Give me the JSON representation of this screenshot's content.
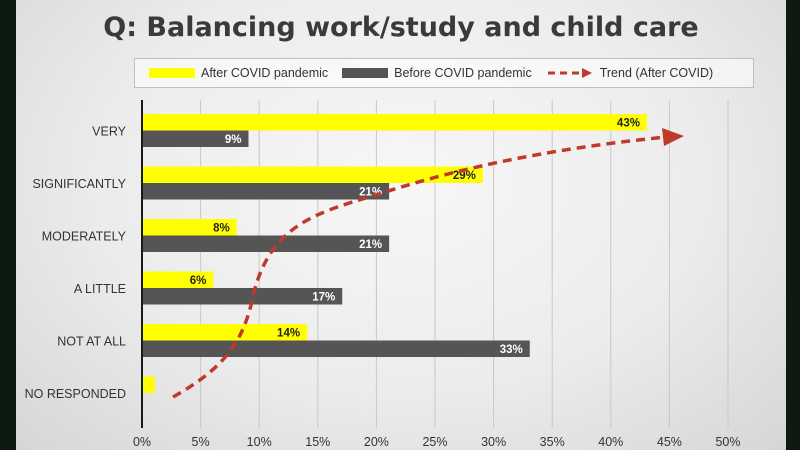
{
  "chart_data": {
    "type": "bar",
    "orientation": "horizontal",
    "title": "Q: Balancing work/study and child care",
    "categories": [
      "VERY",
      "SIGNIFICANTLY",
      "MODERATELY",
      "A LITTLE",
      "NOT AT ALL",
      "NO RESPONDED"
    ],
    "series": [
      {
        "name": "After COVID pandemic",
        "color": "#ffff00",
        "values": [
          43,
          29,
          8,
          6,
          14,
          1
        ],
        "labels": [
          "43%",
          "29%",
          "8%",
          "6%",
          "14%",
          ""
        ]
      },
      {
        "name": "Before COVID pandemic",
        "color": "#555555",
        "values": [
          9,
          21,
          21,
          17,
          33,
          null
        ],
        "labels": [
          "9%",
          "21%",
          "21%",
          "17%",
          "33%",
          ""
        ]
      }
    ],
    "trend": {
      "name": "Trend (After COVID)",
      "color": "#c0392b",
      "style": "dashed-arrow"
    },
    "xticks": [
      "0%",
      "5%",
      "10%",
      "15%",
      "20%",
      "25%",
      "30%",
      "35%",
      "40%",
      "45%",
      "50%"
    ],
    "xlim": [
      0,
      50
    ],
    "grid": true,
    "legend_position": "top"
  }
}
